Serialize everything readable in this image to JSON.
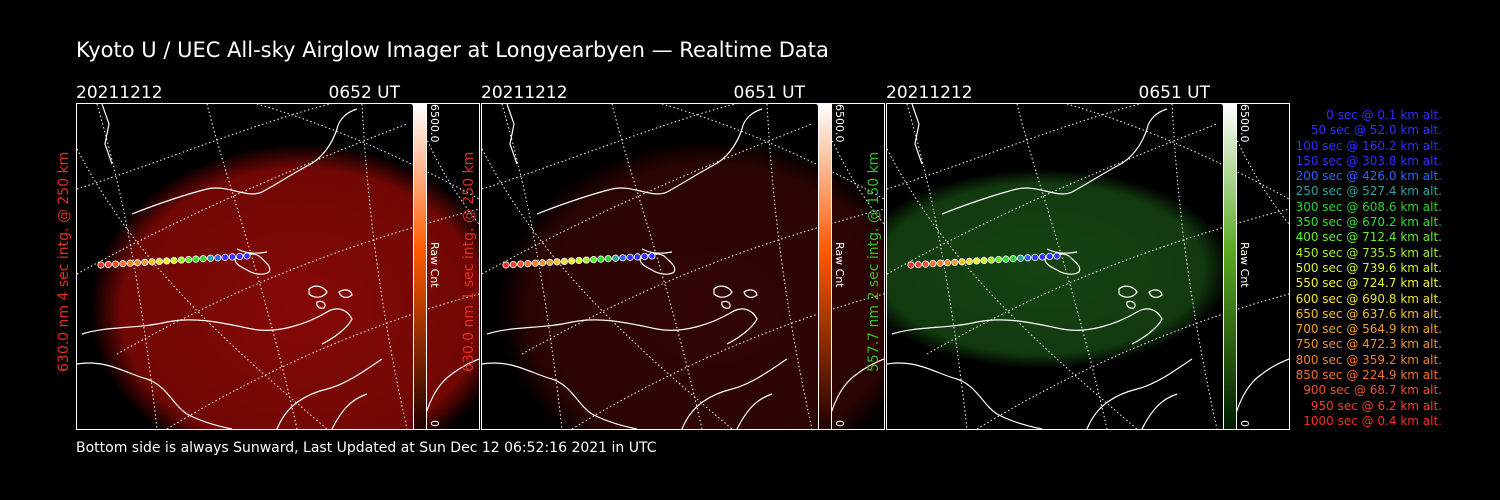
{
  "title": "Kyoto U / UEC All-sky Airglow Imager at Longyearbyen — Realtime Data",
  "footer": "Bottom side is always Sunward, Last Updated at Sun Dec 12 06:52:16 2021 in UTC",
  "panels": [
    {
      "date": "20211212",
      "time": "0652 UT",
      "label": "630.0 nm 4 sec intg. @ 250 km",
      "label_color": "#e03020",
      "glow_color": "#b80c08",
      "glow_opacity": 0.72,
      "cbar_max": "6500.0",
      "cbar_min": "0",
      "cbar_unit": "Raw Cnt",
      "cbar_color": "#ff5a00"
    },
    {
      "date": "20211212",
      "time": "0651 UT",
      "label": "630.0 nm 1 sec intg. @ 250 km",
      "label_color": "#e03020",
      "glow_color": "#5a0806",
      "glow_opacity": 0.55,
      "cbar_max": "6500.0",
      "cbar_min": "0",
      "cbar_unit": "Raw Cnt",
      "cbar_color": "#ff5a00"
    },
    {
      "date": "20211212",
      "time": "0651 UT",
      "label": "557.7 nm 2 sec intg. @ 150 km",
      "label_color": "#30c020",
      "glow_color": "#1d5a18",
      "glow_opacity": 0.75,
      "cbar_max": "6500.0",
      "cbar_min": "0",
      "cbar_unit": "Raw Cnt",
      "cbar_color": "#5aaa20"
    }
  ],
  "legend": [
    {
      "text": "0 sec @    0.1 km alt.",
      "color": "#3030ff"
    },
    {
      "text": "50 sec @   52.0 km alt.",
      "color": "#3030ff"
    },
    {
      "text": "100 sec @  160.2 km alt.",
      "color": "#3030ff"
    },
    {
      "text": "150 sec @  303.8 km alt.",
      "color": "#3030ff"
    },
    {
      "text": "200 sec @  426.0 km alt.",
      "color": "#3060ff"
    },
    {
      "text": "250 sec @  527.4 km alt.",
      "color": "#30a0a0"
    },
    {
      "text": "300 sec @  608.6 km alt.",
      "color": "#30d030"
    },
    {
      "text": "350 sec @  670.2 km alt.",
      "color": "#30e030"
    },
    {
      "text": "400 sec @  712.4 km alt.",
      "color": "#60f030"
    },
    {
      "text": "450 sec @  735.5 km alt.",
      "color": "#a0f030"
    },
    {
      "text": "500 sec @  739.6 km alt.",
      "color": "#d0f030"
    },
    {
      "text": "550 sec @  724.7 km alt.",
      "color": "#f0f030"
    },
    {
      "text": "600 sec @  690.8 km alt.",
      "color": "#f0e030"
    },
    {
      "text": "650 sec @  637.6 km alt.",
      "color": "#f0c030"
    },
    {
      "text": "700 sec @  564.9 km alt.",
      "color": "#f0a030"
    },
    {
      "text": "750 sec @  472.3 km alt.",
      "color": "#f09030"
    },
    {
      "text": "800 sec @  359.2 km alt.",
      "color": "#f08030"
    },
    {
      "text": "850 sec @  224.9 km alt.",
      "color": "#f07030"
    },
    {
      "text": "900 sec @   68.7 km alt.",
      "color": "#f05030"
    },
    {
      "text": "950 sec @    6.2 km alt.",
      "color": "#f04030"
    },
    {
      "text": "1000 sec @    0.4 km alt.",
      "color": "#f03020"
    }
  ]
}
